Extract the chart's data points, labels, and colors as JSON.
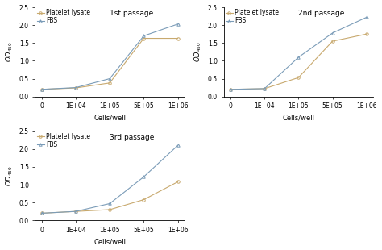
{
  "x_values": [
    0,
    10000,
    100000,
    500000,
    1000000
  ],
  "x_labels": [
    "0",
    "1E+04",
    "1E+05",
    "5E+05",
    "1E+06"
  ],
  "passages": [
    "1st passage",
    "2nd passage",
    "3rd passage"
  ],
  "platelet_lysate_color": "#C8A96E",
  "fbs_color": "#7B9CB8",
  "platelet_marker": "o",
  "fbs_marker": "^",
  "data": {
    "1st passage": {
      "platelet_lysate": [
        0.2,
        0.24,
        0.38,
        1.63,
        1.63
      ],
      "fbs": [
        0.2,
        0.25,
        0.5,
        1.7,
        2.03
      ]
    },
    "2nd passage": {
      "platelet_lysate": [
        0.2,
        0.22,
        0.53,
        1.55,
        1.75
      ],
      "fbs": [
        0.2,
        0.22,
        1.1,
        1.78,
        2.22
      ]
    },
    "3rd passage": {
      "platelet_lysate": [
        0.2,
        0.25,
        0.3,
        0.58,
        1.08
      ],
      "fbs": [
        0.2,
        0.25,
        0.47,
        1.22,
        2.1
      ]
    }
  },
  "ylabel": "OD$_{450}$",
  "xlabel": "Cells/well",
  "ylim": [
    0,
    2.5
  ],
  "yticks": [
    0.0,
    0.5,
    1.0,
    1.5,
    2.0,
    2.5
  ],
  "legend_platelet": "Platelet lysate",
  "legend_fbs": "FBS",
  "passage_fontsize": 6.5,
  "label_fontsize": 6,
  "tick_fontsize": 5.5,
  "legend_fontsize": 5.5,
  "linewidth": 0.8,
  "markersize": 2.5,
  "markerfacecolor_platelet": "none",
  "markerfacecolor_fbs": "none"
}
